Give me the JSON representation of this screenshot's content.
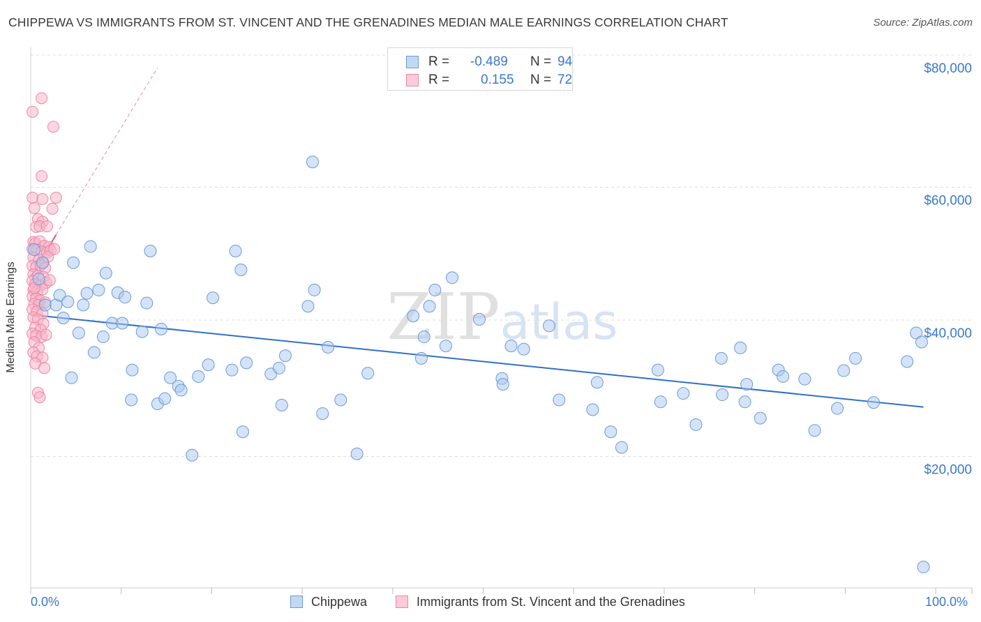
{
  "header": {
    "title": "CHIPPEWA VS IMMIGRANTS FROM ST. VINCENT AND THE GRENADINES MEDIAN MALE EARNINGS CORRELATION CHART",
    "source": "Source: ZipAtlas.com"
  },
  "watermark": "ZIPatlas",
  "legend_top": {
    "rows": [
      {
        "r_label": "R =",
        "r_value": "-0.489",
        "n_label": "N =",
        "n_value": "94"
      },
      {
        "r_label": "R =",
        "r_value": "0.155",
        "n_label": "N =",
        "n_value": "72"
      }
    ]
  },
  "colors": {
    "chippewa_fill": "#a9c8ef",
    "chippewa_stroke": "#6a9ad8",
    "chippewa_line": "#2f6fcc",
    "svg_fill": "#f7b6c9",
    "svg_stroke": "#ec85a5",
    "svg_line": "#e0527f",
    "axis_text": "#3a78c8",
    "grid": "#dcdcdc"
  },
  "chart_data": {
    "type": "scatter",
    "ylabel": "Median Male Earnings",
    "x_tick_labels": [
      "0.0%",
      "100.0%"
    ],
    "y_tick_labels": [
      "$20,000",
      "$40,000",
      "$60,000",
      "$80,000"
    ],
    "y_ticks": [
      20000,
      40000,
      60000,
      80000
    ],
    "xlim": [
      0,
      100
    ],
    "ylim": [
      0,
      82000
    ],
    "grid": "horizontal dashed",
    "legend_placement": "bottom-center",
    "series": [
      {
        "name": "Chippewa",
        "r": -0.489,
        "n": 94,
        "trend": {
          "x": [
            0,
            98.5
          ],
          "y": [
            42000,
            27800
          ]
        },
        "points": [
          [
            0.4,
            52000
          ],
          [
            0.9,
            47500
          ],
          [
            1.3,
            50000
          ],
          [
            1.6,
            43500
          ],
          [
            2.8,
            43500
          ],
          [
            3.2,
            45000
          ],
          [
            3.6,
            41500
          ],
          [
            4.1,
            44000
          ],
          [
            4.5,
            32300
          ],
          [
            4.7,
            50000
          ],
          [
            5.3,
            39200
          ],
          [
            5.8,
            43500
          ],
          [
            6.2,
            45300
          ],
          [
            6.6,
            52500
          ],
          [
            7.0,
            36200
          ],
          [
            7.5,
            45800
          ],
          [
            8.0,
            38600
          ],
          [
            8.3,
            48400
          ],
          [
            9.0,
            40700
          ],
          [
            9.6,
            45400
          ],
          [
            10.1,
            40700
          ],
          [
            10.4,
            44700
          ],
          [
            11.2,
            33500
          ],
          [
            11.1,
            28900
          ],
          [
            12.3,
            39400
          ],
          [
            12.8,
            43800
          ],
          [
            13.2,
            51800
          ],
          [
            14.0,
            28300
          ],
          [
            14.4,
            39800
          ],
          [
            14.8,
            29100
          ],
          [
            15.4,
            32300
          ],
          [
            16.3,
            31000
          ],
          [
            16.6,
            30400
          ],
          [
            17.8,
            20400
          ],
          [
            18.5,
            32500
          ],
          [
            19.6,
            34300
          ],
          [
            20.1,
            44600
          ],
          [
            22.2,
            33500
          ],
          [
            22.6,
            51800
          ],
          [
            23.2,
            48900
          ],
          [
            23.4,
            24000
          ],
          [
            23.8,
            34600
          ],
          [
            26.5,
            32900
          ],
          [
            27.4,
            33800
          ],
          [
            27.7,
            28100
          ],
          [
            28.1,
            35700
          ],
          [
            30.6,
            43300
          ],
          [
            31.1,
            65500
          ],
          [
            31.3,
            45800
          ],
          [
            32.2,
            26800
          ],
          [
            32.8,
            37000
          ],
          [
            34.2,
            28900
          ],
          [
            36.0,
            20600
          ],
          [
            37.2,
            33000
          ],
          [
            42.2,
            41800
          ],
          [
            43.1,
            35300
          ],
          [
            43.4,
            38600
          ],
          [
            44.0,
            43300
          ],
          [
            44.6,
            45800
          ],
          [
            45.8,
            37200
          ],
          [
            46.5,
            47700
          ],
          [
            49.5,
            41300
          ],
          [
            52.0,
            32200
          ],
          [
            52.1,
            31300
          ],
          [
            53.0,
            37200
          ],
          [
            54.4,
            36700
          ],
          [
            57.2,
            40300
          ],
          [
            58.3,
            28900
          ],
          [
            62.0,
            27400
          ],
          [
            62.5,
            31600
          ],
          [
            64.0,
            24000
          ],
          [
            65.2,
            21600
          ],
          [
            69.2,
            33500
          ],
          [
            69.5,
            28600
          ],
          [
            72.0,
            29900
          ],
          [
            73.4,
            25100
          ],
          [
            76.2,
            35300
          ],
          [
            76.3,
            29700
          ],
          [
            78.3,
            36900
          ],
          [
            78.8,
            28600
          ],
          [
            79.0,
            31300
          ],
          [
            80.5,
            26100
          ],
          [
            82.5,
            33500
          ],
          [
            83.0,
            32500
          ],
          [
            85.4,
            32100
          ],
          [
            86.5,
            24200
          ],
          [
            89.0,
            27600
          ],
          [
            89.7,
            33400
          ],
          [
            91.0,
            35300
          ],
          [
            93.0,
            28500
          ],
          [
            96.7,
            34800
          ],
          [
            97.7,
            39200
          ],
          [
            98.3,
            37800
          ],
          [
            98.5,
            3200
          ]
        ]
      },
      {
        "name": "Immigrants from St. Vincent and the Grenadines",
        "r": 0.155,
        "n": 72,
        "trend": {
          "x": [
            0,
            2.8
          ],
          "y": [
            47800,
            54300
          ]
        },
        "trend_extension": {
          "x": [
            2.8,
            14.0
          ],
          "y": [
            54300,
            80000
          ]
        },
        "points": [
          [
            0.2,
            73200
          ],
          [
            1.2,
            75300
          ],
          [
            2.5,
            70900
          ],
          [
            1.2,
            63300
          ],
          [
            0.2,
            60000
          ],
          [
            1.3,
            59800
          ],
          [
            2.8,
            60000
          ],
          [
            2.4,
            58300
          ],
          [
            0.4,
            58400
          ],
          [
            0.8,
            56700
          ],
          [
            1.3,
            56300
          ],
          [
            0.6,
            55500
          ],
          [
            1.0,
            55600
          ],
          [
            1.8,
            55600
          ],
          [
            0.3,
            53200
          ],
          [
            0.5,
            53000
          ],
          [
            1.0,
            53300
          ],
          [
            1.5,
            52600
          ],
          [
            2.0,
            52400
          ],
          [
            0.2,
            52100
          ],
          [
            0.7,
            52000
          ],
          [
            1.2,
            51700
          ],
          [
            1.8,
            51600
          ],
          [
            0.3,
            50800
          ],
          [
            0.9,
            50400
          ],
          [
            1.4,
            50000
          ],
          [
            0.2,
            49500
          ],
          [
            0.6,
            49300
          ],
          [
            1.1,
            49600
          ],
          [
            1.6,
            49200
          ],
          [
            0.3,
            48200
          ],
          [
            0.8,
            48000
          ],
          [
            1.4,
            47800
          ],
          [
            0.2,
            47200
          ],
          [
            0.5,
            46700
          ],
          [
            1.1,
            46500
          ],
          [
            1.7,
            46900
          ],
          [
            2.1,
            47300
          ],
          [
            0.3,
            45800
          ],
          [
            0.7,
            45600
          ],
          [
            1.3,
            45900
          ],
          [
            0.2,
            44800
          ],
          [
            0.6,
            44500
          ],
          [
            1.0,
            44200
          ],
          [
            0.4,
            43700
          ],
          [
            0.9,
            43500
          ],
          [
            1.6,
            43900
          ],
          [
            0.2,
            42800
          ],
          [
            0.7,
            42500
          ],
          [
            1.3,
            42200
          ],
          [
            0.3,
            41600
          ],
          [
            0.8,
            41300
          ],
          [
            1.4,
            40600
          ],
          [
            0.5,
            40000
          ],
          [
            1.1,
            39700
          ],
          [
            0.2,
            39100
          ],
          [
            0.6,
            38800
          ],
          [
            1.2,
            38600
          ],
          [
            1.7,
            38900
          ],
          [
            0.4,
            37800
          ],
          [
            0.9,
            36900
          ],
          [
            0.3,
            36200
          ],
          [
            0.7,
            35600
          ],
          [
            1.3,
            35400
          ],
          [
            0.5,
            34500
          ],
          [
            1.5,
            33800
          ],
          [
            0.8,
            30000
          ],
          [
            1.0,
            29300
          ],
          [
            2.2,
            51900
          ],
          [
            1.9,
            50900
          ],
          [
            2.6,
            52100
          ],
          [
            0.4,
            46100
          ]
        ]
      }
    ]
  }
}
